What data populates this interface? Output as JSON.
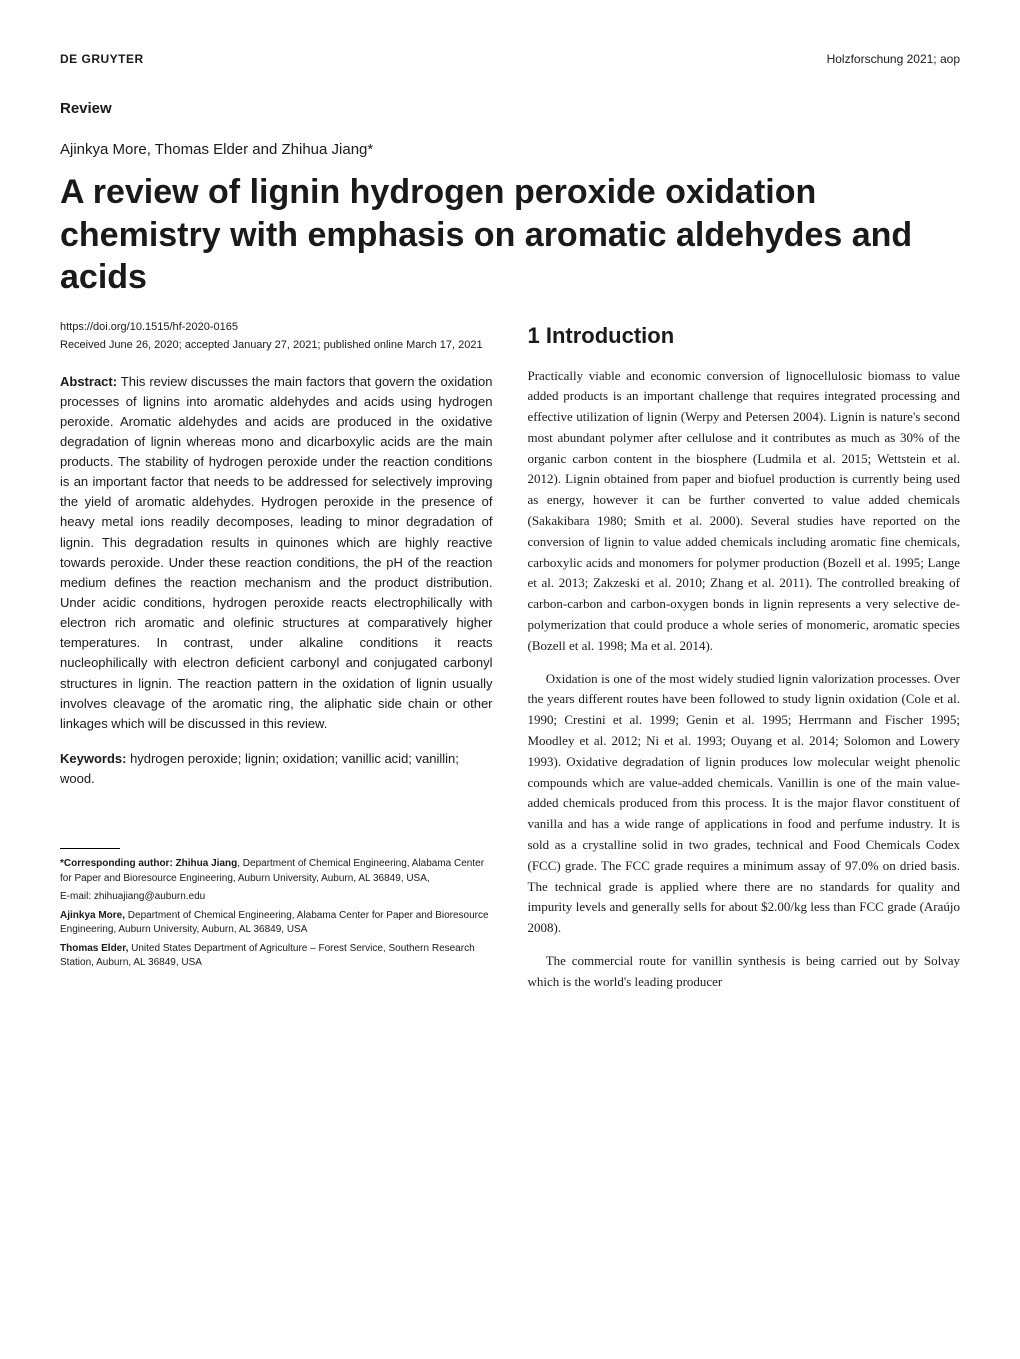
{
  "header": {
    "publisher": "DE GRUYTER",
    "journal_ref": "Holzforschung 2021; aop"
  },
  "article_type": "Review",
  "authors": "Ajinkya More, Thomas Elder and Zhihua Jiang*",
  "title": "A review of lignin hydrogen peroxide oxidation chemistry with emphasis on aromatic aldehydes and acids",
  "doi": "https://doi.org/10.1515/hf-2020-0165",
  "dates": "Received June 26, 2020; accepted January 27, 2021; published online March 17, 2021",
  "abstract_label": "Abstract:",
  "abstract_text": " This review discusses the main factors that govern the oxidation processes of lignins into aromatic aldehydes and acids using hydrogen peroxide. Aromatic aldehydes and acids are produced in the oxidative degradation of lignin whereas mono and dicarboxylic acids are the main products. The stability of hydrogen peroxide under the reaction conditions is an important factor that needs to be addressed for selectively improving the yield of aromatic aldehydes. Hydrogen peroxide in the presence of heavy metal ions readily decomposes, leading to minor degradation of lignin. This degradation results in quinones which are highly reactive towards peroxide. Under these reaction conditions, the pH of the reaction medium defines the reaction mechanism and the product distribution. Under acidic conditions, hydrogen peroxide reacts electrophilically with electron rich aromatic and olefinic structures at comparatively higher temperatures. In contrast, under alkaline conditions it reacts nucleophilically with electron deficient carbonyl and conjugated carbonyl structures in lignin. The reaction pattern in the oxidation of lignin usually involves cleavage of the aromatic ring, the aliphatic side chain or other linkages which will be discussed in this review.",
  "keywords_label": "Keywords:",
  "keywords_text": " hydrogen peroxide; lignin; oxidation; vanillic acid; vanillin; wood.",
  "section_heading": "1 Introduction",
  "para1": "Practically viable and economic conversion of lignocellulosic biomass to value added products is an important challenge that requires integrated processing and effective utilization of lignin (Werpy and Petersen 2004). Lignin is nature's second most abundant polymer after cellulose and it contributes as much as 30% of the organic carbon content in the biosphere (Ludmila et al. 2015; Wettstein et al. 2012). Lignin obtained from paper and biofuel production is currently being used as energy, however it can be further converted to value added chemicals (Sakakibara 1980; Smith et al. 2000). Several studies have reported on the conversion of lignin to value added chemicals including aromatic fine chemicals, carboxylic acids and monomers for polymer production (Bozell et al. 1995; Lange et al. 2013; Zakzeski et al. 2010; Zhang et al. 2011). The controlled breaking of carbon-carbon and carbon-oxygen bonds in lignin represents a very selective de-polymerization that could produce a whole series of monomeric, aromatic species (Bozell et al. 1998; Ma et al. 2014).",
  "para2": "Oxidation is one of the most widely studied lignin valorization processes. Over the years different routes have been followed to study lignin oxidation (Cole et al. 1990; Crestini et al. 1999; Genin et al. 1995; Herrmann and Fischer 1995; Moodley et al. 2012; Ni et al. 1993; Ouyang et al. 2014; Solomon and Lowery 1993). Oxidative degradation of lignin produces low molecular weight phenolic compounds which are value-added chemicals. Vanillin is one of the main value-added chemicals produced from this process. It is the major flavor constituent of vanilla and has a wide range of applications in food and perfume industry. It is sold as a crystalline solid in two grades, technical and Food Chemicals Codex (FCC) grade. The FCC grade requires a minimum assay of 97.0% on dried basis. The technical grade is applied where there are no standards for quality and impurity levels and generally sells for about $2.00/kg less than FCC grade (Araújo 2008).",
  "para3": "The commercial route for vanillin synthesis is being carried out by Solvay which is the world's leading producer",
  "footnotes": {
    "corresponding_label": "*Corresponding author: Zhihua Jiang",
    "corresponding_text": ", Department of Chemical Engineering, Alabama Center for Paper and Bioresource Engineering, Auburn University, Auburn, AL 36849, USA,",
    "email": "E-mail: zhihuajiang@auburn.edu",
    "author2_label": "Ajinkya More,",
    "author2_text": " Department of Chemical Engineering, Alabama Center for Paper and Bioresource Engineering, Auburn University, Auburn, AL 36849, USA",
    "author3_label": "Thomas Elder,",
    "author3_text": " United States Department of Agriculture – Forest Service, Southern Research Station, Auburn, AL 36849, USA"
  }
}
